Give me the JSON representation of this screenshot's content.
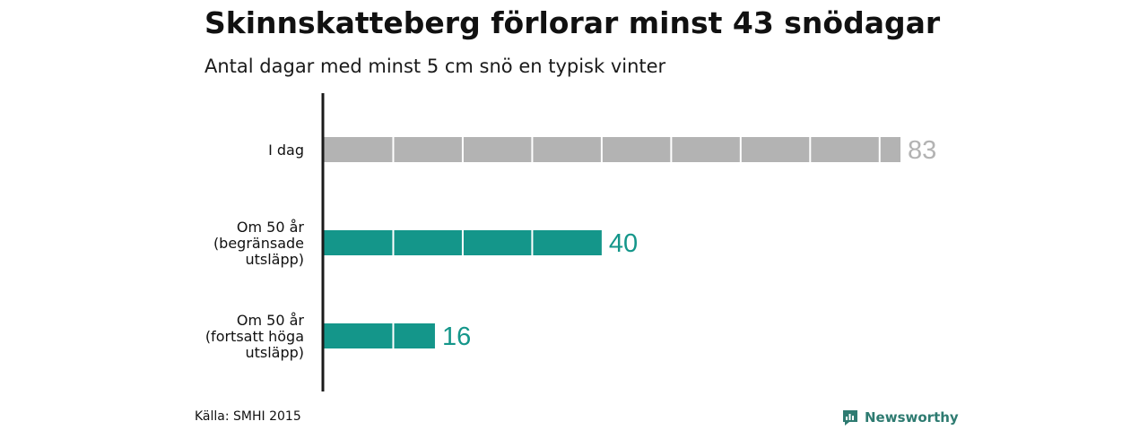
{
  "header": {
    "title": "Skinnskatteberg förlorar minst 43 snödagar",
    "subtitle": "Antal dagar med minst 5 cm snö en typisk vinter"
  },
  "chart_data": {
    "type": "bar",
    "orientation": "horizontal",
    "title": "Skinnskatteberg förlorar minst 43 snödagar",
    "subtitle": "Antal dagar med minst 5 cm snö en typisk vinter",
    "categories": [
      [
        "I dag"
      ],
      [
        "Om 50 år",
        "(begränsade",
        "utsläpp)"
      ],
      [
        "Om 50 år",
        "(fortsatt höga",
        "utsläpp)"
      ]
    ],
    "values": [
      83,
      40,
      16
    ],
    "value_labels": [
      "83",
      "40",
      "16"
    ],
    "colors": [
      "#b3b3b3",
      "#14968a",
      "#14968a"
    ],
    "label_colors": [
      "#b3b3b3",
      "#14968a",
      "#14968a"
    ],
    "segment_size": 10,
    "xlim": [
      0,
      83
    ],
    "grid": false,
    "xlabel": "",
    "ylabel": ""
  },
  "footer": {
    "source": "Källa: SMHI 2015",
    "brand": "Newsworthy",
    "brand_color": "#2e7b71"
  }
}
